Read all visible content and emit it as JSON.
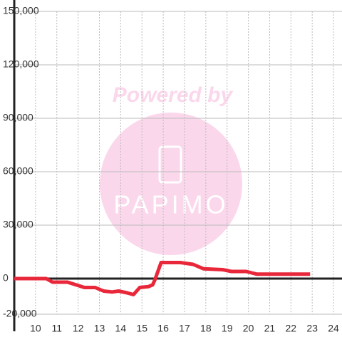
{
  "chart_data": {
    "type": "line",
    "watermark": {
      "line1": "Powered by",
      "line2": "PAPIMO"
    },
    "x": [
      9,
      10.5,
      10.8,
      11.5,
      12.3,
      12.8,
      13.2,
      13.6,
      13.9,
      14.3,
      14.6,
      14.9,
      15.3,
      15.5,
      15.6,
      15.9,
      16.8,
      17.4,
      17.9,
      18.8,
      19.2,
      19.9,
      20.4,
      22.9
    ],
    "values": [
      0,
      0,
      -2000,
      -2000,
      -5000,
      -5000,
      -7000,
      -7500,
      -7000,
      -8000,
      -9000,
      -5000,
      -4500,
      -3500,
      -1000,
      9000,
      9000,
      8000,
      5500,
      5000,
      4000,
      4000,
      2500,
      2500
    ],
    "color": "#e8283a",
    "xlim": [
      9,
      24.4
    ],
    "xticks": [
      10,
      11,
      12,
      13,
      14,
      15,
      16,
      17,
      18,
      19,
      20,
      21,
      22,
      23,
      24
    ],
    "ylim": [
      -20000,
      150000
    ],
    "yticks": [
      {
        "value": -20000,
        "label": "-20,000"
      },
      0,
      {
        "value": 30000,
        "label": "30,000"
      },
      {
        "value": 60000,
        "label": "60,000"
      },
      {
        "value": 90000,
        "label": "90,000"
      },
      {
        "value": 120000,
        "label": "120,000"
      },
      {
        "value": 150000,
        "label": "150,000"
      }
    ],
    "grid": true
  }
}
